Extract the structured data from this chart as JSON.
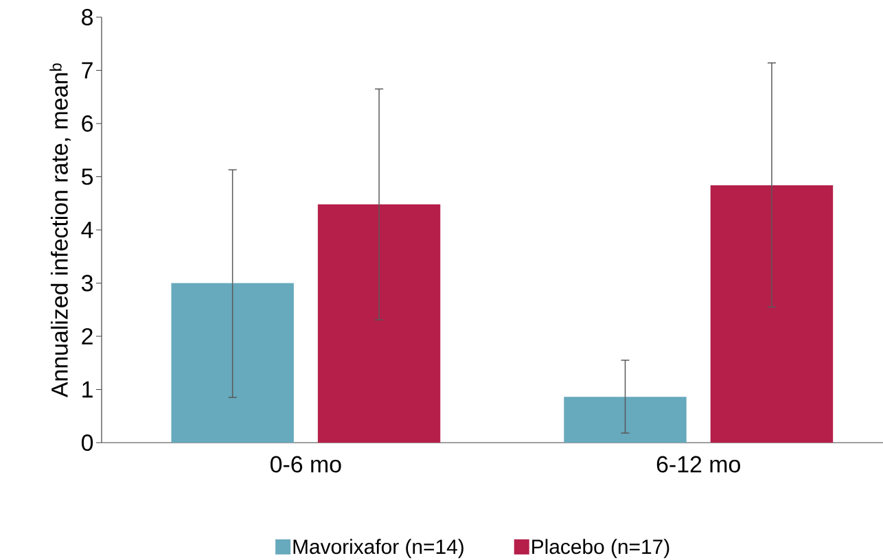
{
  "chart_data": {
    "type": "bar",
    "ylabel": "Annualized infection rate, mean$^{b}$",
    "categories": [
      "0-6 mo",
      "6-12 mo"
    ],
    "series": [
      {
        "name": "Mavorixafor (n=14)",
        "color": "#67a9bd",
        "values": [
          3.0,
          0.86
        ],
        "errors": [
          [
            0.85,
            5.13
          ],
          [
            0.18,
            1.55
          ]
        ]
      },
      {
        "name": "Placebo (n=17)",
        "color": "#b51f4a",
        "values": [
          4.48,
          4.84
        ],
        "errors": [
          [
            2.31,
            6.65
          ],
          [
            2.55,
            7.14
          ]
        ]
      }
    ],
    "ylim": [
      0,
      8
    ],
    "yticks": [
      0,
      1,
      2,
      3,
      4,
      5,
      6,
      7,
      8
    ],
    "legend": "bottom"
  }
}
